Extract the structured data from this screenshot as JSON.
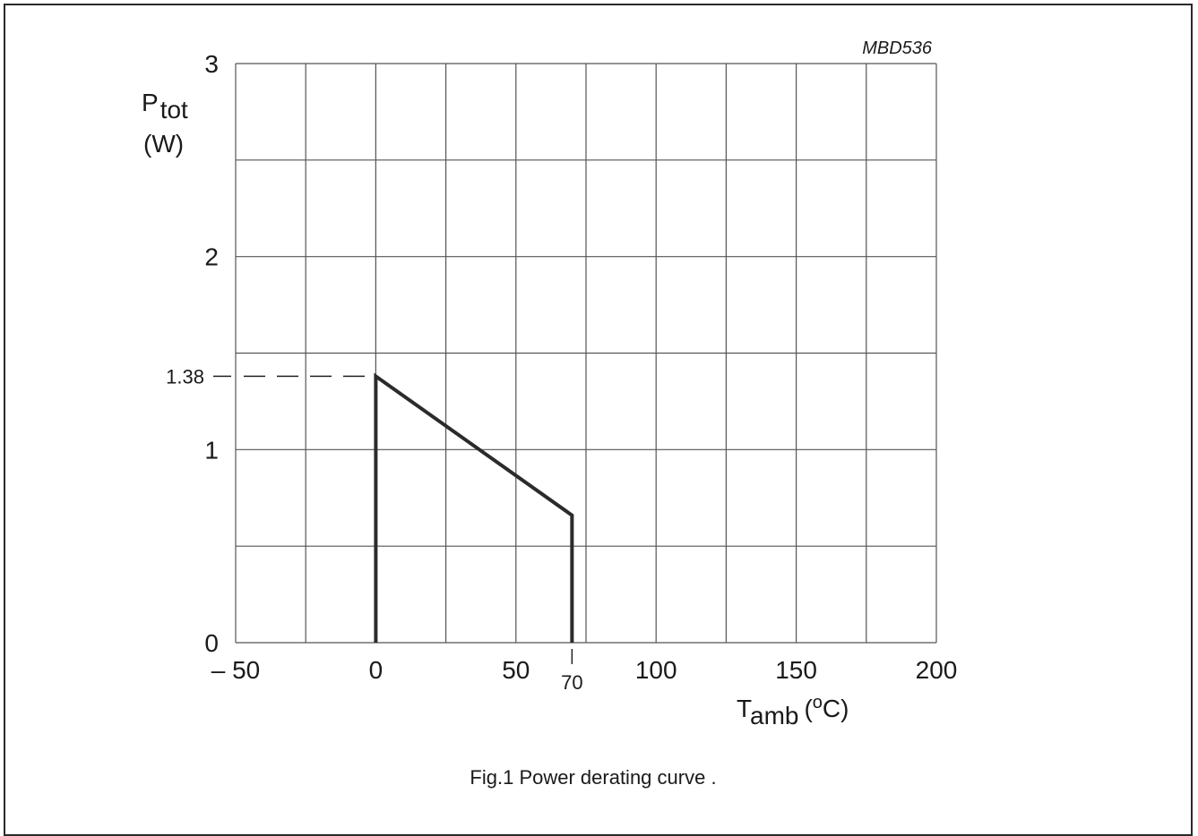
{
  "figure_code": "MBD536",
  "caption": "Fig.1  Power derating curve .",
  "chart_data": {
    "type": "line",
    "title": "",
    "ylabel": {
      "main": "P",
      "sub": "tot",
      "unit": "(W)"
    },
    "xlabel": {
      "main": "T",
      "sub": "amb",
      "unit_pre": "(",
      "unit_sup": "o",
      "unit_post": "C)"
    },
    "xlim": [
      -50,
      200
    ],
    "ylim": [
      0,
      3
    ],
    "grid": true,
    "x_minor_step": 25,
    "y_minor_step": 0.5,
    "xticks": [
      {
        "value": -50,
        "label": "– 50"
      },
      {
        "value": 0,
        "label": "0"
      },
      {
        "value": 50,
        "label": "50"
      },
      {
        "value": 100,
        "label": "100"
      },
      {
        "value": 150,
        "label": "150"
      },
      {
        "value": 200,
        "label": "200"
      }
    ],
    "yticks": [
      {
        "value": 0,
        "label": "0"
      },
      {
        "value": 1,
        "label": "1"
      },
      {
        "value": 2,
        "label": "2"
      },
      {
        "value": 3,
        "label": "3"
      }
    ],
    "annotations": [
      {
        "axis": "y",
        "value": 1.38,
        "label": "1.38",
        "dashed_to_x": 0
      },
      {
        "axis": "x",
        "value": 70,
        "label": "70"
      }
    ],
    "series": [
      {
        "color": "#2b2b2b",
        "points": [
          [
            0,
            0
          ],
          [
            0,
            1.38
          ],
          [
            70,
            0.66
          ],
          [
            70,
            0
          ]
        ]
      }
    ]
  }
}
